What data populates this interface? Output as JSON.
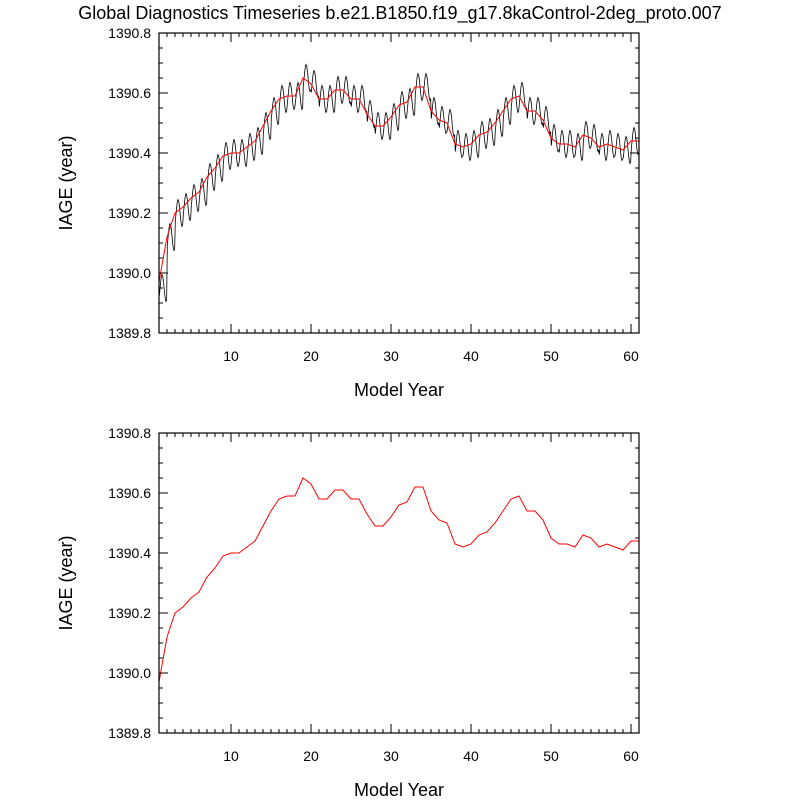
{
  "figure": {
    "title": "Global Diagnostics Timeseries b.e21.B1850.f19_g17.8kaControl-2deg_proto.007"
  },
  "colors": {
    "monthly_line": "#000000",
    "annual_line": "#ff0000",
    "axes": "#000000"
  },
  "chart_data": [
    {
      "type": "line",
      "title": "",
      "xlabel": "Model Year",
      "ylabel": "IAGE (year)",
      "xlim": [
        1,
        61
      ],
      "ylim": [
        1389.8,
        1390.8
      ],
      "x_ticks": [
        10,
        20,
        30,
        40,
        50,
        60
      ],
      "x_minor_step": 1,
      "y_ticks": [
        1389.8,
        1390.0,
        1390.2,
        1390.4,
        1390.6,
        1390.8
      ],
      "y_tick_labels": [
        "1389.8",
        "1390.0",
        "1390.2",
        "1390.4",
        "1390.6",
        "1390.8"
      ],
      "y_minor_step": 0.05,
      "grid": false,
      "legend": "none",
      "series": [
        {
          "kind": "monthly",
          "x_start": 1.04,
          "x_step": 0.0833333,
          "seasonal_amplitude": 0.045,
          "mean_by_year": [
            1389.95,
            1390.12,
            1390.2,
            1390.22,
            1390.25,
            1390.27,
            1390.32,
            1390.35,
            1390.39,
            1390.4,
            1390.4,
            1390.42,
            1390.44,
            1390.49,
            1390.54,
            1390.58,
            1390.59,
            1390.59,
            1390.65,
            1390.63,
            1390.58,
            1390.58,
            1390.61,
            1390.61,
            1390.58,
            1390.58,
            1390.53,
            1390.49,
            1390.49,
            1390.52,
            1390.56,
            1390.57,
            1390.62,
            1390.62,
            1390.54,
            1390.51,
            1390.5,
            1390.43,
            1390.42,
            1390.43,
            1390.46,
            1390.47,
            1390.5,
            1390.54,
            1390.58,
            1390.59,
            1390.54,
            1390.54,
            1390.51,
            1390.45,
            1390.43,
            1390.43,
            1390.42,
            1390.46,
            1390.45,
            1390.42,
            1390.43,
            1390.42,
            1390.41,
            1390.44
          ]
        },
        {
          "kind": "annual",
          "x": [
            1,
            2,
            3,
            4,
            5,
            6,
            7,
            8,
            9,
            10,
            11,
            12,
            13,
            14,
            15,
            16,
            17,
            18,
            19,
            20,
            21,
            22,
            23,
            24,
            25,
            26,
            27,
            28,
            29,
            30,
            31,
            32,
            33,
            34,
            35,
            36,
            37,
            38,
            39,
            40,
            41,
            42,
            43,
            44,
            45,
            46,
            47,
            48,
            49,
            50,
            51,
            52,
            53,
            54,
            55,
            56,
            57,
            58,
            59,
            60,
            61
          ],
          "values": [
            1389.97,
            1390.12,
            1390.2,
            1390.22,
            1390.25,
            1390.27,
            1390.32,
            1390.35,
            1390.39,
            1390.4,
            1390.4,
            1390.42,
            1390.44,
            1390.49,
            1390.54,
            1390.58,
            1390.59,
            1390.59,
            1390.65,
            1390.63,
            1390.58,
            1390.58,
            1390.61,
            1390.61,
            1390.58,
            1390.58,
            1390.53,
            1390.49,
            1390.49,
            1390.52,
            1390.56,
            1390.57,
            1390.62,
            1390.62,
            1390.54,
            1390.51,
            1390.5,
            1390.43,
            1390.42,
            1390.43,
            1390.46,
            1390.47,
            1390.5,
            1390.54,
            1390.58,
            1390.59,
            1390.54,
            1390.54,
            1390.51,
            1390.45,
            1390.43,
            1390.43,
            1390.42,
            1390.46,
            1390.45,
            1390.42,
            1390.43,
            1390.42,
            1390.41,
            1390.44,
            1390.44
          ]
        }
      ]
    },
    {
      "type": "line",
      "title": "",
      "xlabel": "Model Year",
      "ylabel": "IAGE (year)",
      "xlim": [
        1,
        61
      ],
      "ylim": [
        1389.8,
        1390.8
      ],
      "x_ticks": [
        10,
        20,
        30,
        40,
        50,
        60
      ],
      "x_minor_step": 1,
      "y_ticks": [
        1389.8,
        1390.0,
        1390.2,
        1390.4,
        1390.6,
        1390.8
      ],
      "y_tick_labels": [
        "1389.8",
        "1390.0",
        "1390.2",
        "1390.4",
        "1390.6",
        "1390.8"
      ],
      "y_minor_step": 0.05,
      "grid": false,
      "legend": "none",
      "series": [
        {
          "kind": "annual",
          "x": [
            1,
            2,
            3,
            4,
            5,
            6,
            7,
            8,
            9,
            10,
            11,
            12,
            13,
            14,
            15,
            16,
            17,
            18,
            19,
            20,
            21,
            22,
            23,
            24,
            25,
            26,
            27,
            28,
            29,
            30,
            31,
            32,
            33,
            34,
            35,
            36,
            37,
            38,
            39,
            40,
            41,
            42,
            43,
            44,
            45,
            46,
            47,
            48,
            49,
            50,
            51,
            52,
            53,
            54,
            55,
            56,
            57,
            58,
            59,
            60,
            61
          ],
          "values": [
            1389.97,
            1390.12,
            1390.2,
            1390.22,
            1390.25,
            1390.27,
            1390.32,
            1390.35,
            1390.39,
            1390.4,
            1390.4,
            1390.42,
            1390.44,
            1390.49,
            1390.54,
            1390.58,
            1390.59,
            1390.59,
            1390.65,
            1390.63,
            1390.58,
            1390.58,
            1390.61,
            1390.61,
            1390.58,
            1390.58,
            1390.53,
            1390.49,
            1390.49,
            1390.52,
            1390.56,
            1390.57,
            1390.62,
            1390.62,
            1390.54,
            1390.51,
            1390.5,
            1390.43,
            1390.42,
            1390.43,
            1390.46,
            1390.47,
            1390.5,
            1390.54,
            1390.58,
            1390.59,
            1390.54,
            1390.54,
            1390.51,
            1390.45,
            1390.43,
            1390.43,
            1390.42,
            1390.46,
            1390.45,
            1390.42,
            1390.43,
            1390.42,
            1390.41,
            1390.44,
            1390.44
          ]
        }
      ]
    }
  ]
}
